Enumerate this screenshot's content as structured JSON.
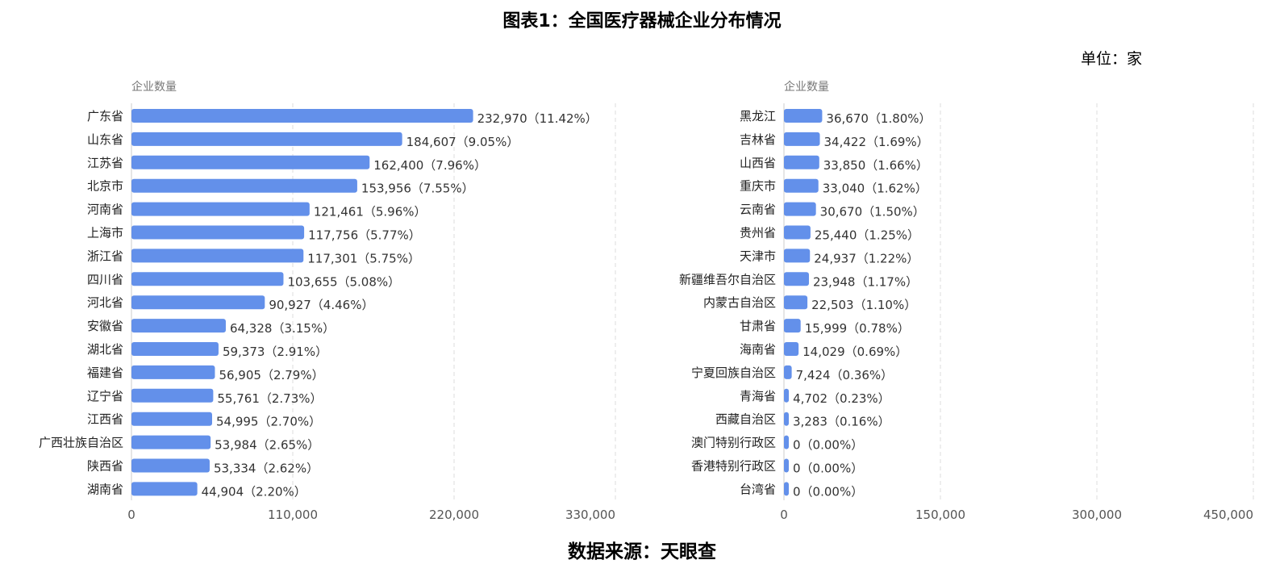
{
  "title": "图表1：全国医疗器械企业分布情况",
  "unit": "单位：家",
  "source": "数据来源：天眼查",
  "colors": {
    "bar": "#6390EA",
    "label": "#333333",
    "axis": "#555555",
    "grid": "#dddddd"
  },
  "chart_data": [
    {
      "type": "bar",
      "orientation": "horizontal",
      "ylabel": "企业数量",
      "xlim": [
        0,
        330000
      ],
      "xticks": [
        "0",
        "110,000",
        "220,000",
        "330,000"
      ],
      "xtick_values": [
        0,
        110000,
        220000,
        330000
      ],
      "grid": "vertical dashed",
      "categories": [
        "广东省",
        "山东省",
        "江苏省",
        "北京市",
        "河南省",
        "上海市",
        "浙江省",
        "四川省",
        "河北省",
        "安徽省",
        "湖北省",
        "福建省",
        "辽宁省",
        "江西省",
        "广西壮族自治区",
        "陕西省",
        "湖南省"
      ],
      "values": [
        232970,
        184607,
        162400,
        153956,
        121461,
        117756,
        117301,
        103655,
        90927,
        64328,
        59373,
        56905,
        55761,
        54995,
        53984,
        53334,
        44904
      ],
      "labels": [
        "232,970（11.42%）",
        "184,607（9.05%）",
        "162,400（7.96%）",
        "153,956（7.55%）",
        "121,461（5.96%）",
        "117,756（5.77%）",
        "117,301（5.75%）",
        "103,655（5.08%）",
        "90,927（4.46%）",
        "64,328（3.15%）",
        "59,373（2.91%）",
        "56,905（2.79%）",
        "55,761（2.73%）",
        "54,995（2.70%）",
        "53,984（2.65%）",
        "53,334（2.62%）",
        "44,904（2.20%）"
      ]
    },
    {
      "type": "bar",
      "orientation": "horizontal",
      "ylabel": "企业数量",
      "xlim": [
        0,
        450000
      ],
      "xticks": [
        "0",
        "150,000",
        "300,000",
        "450,000"
      ],
      "xtick_values": [
        0,
        150000,
        300000,
        450000
      ],
      "grid": "vertical dashed",
      "categories": [
        "黑龙江",
        "吉林省",
        "山西省",
        "重庆市",
        "云南省",
        "贵州省",
        "天津市",
        "新疆维吾尔自治区",
        "内蒙古自治区",
        "甘肃省",
        "海南省",
        "宁夏回族自治区",
        "青海省",
        "西藏自治区",
        "澳门特别行政区",
        "香港特别行政区",
        "台湾省"
      ],
      "values": [
        36670,
        34422,
        33850,
        33040,
        30670,
        25440,
        24937,
        23948,
        22503,
        15999,
        14029,
        7424,
        4702,
        3283,
        0,
        0,
        0
      ],
      "labels": [
        "36,670（1.80%）",
        "34,422（1.69%）",
        "33,850（1.66%）",
        "33,040（1.62%）",
        "30,670（1.50%）",
        "25,440（1.25%）",
        "24,937（1.22%）",
        "23,948（1.17%）",
        "22,503（1.10%）",
        "15,999（0.78%）",
        "14,029（0.69%）",
        "7,424（0.36%）",
        "4,702（0.23%）",
        "3,283（0.16%）",
        "0（0.00%）",
        "0（0.00%）",
        "0（0.00%）"
      ]
    }
  ]
}
